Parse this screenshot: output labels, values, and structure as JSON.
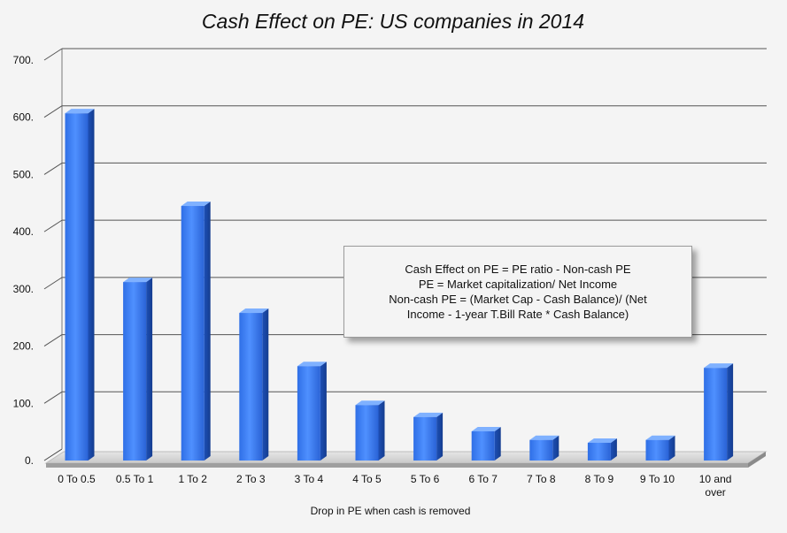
{
  "chart_data": {
    "type": "bar",
    "title": "Cash Effect on PE: US companies in 2014",
    "xlabel": "Drop in PE when cash is removed",
    "ylabel": "",
    "ylim": [
      0,
      700
    ],
    "yticks": [
      0,
      100,
      200,
      300,
      400,
      500,
      600,
      700
    ],
    "ytick_labels": [
      "0.",
      "100.",
      "200.",
      "300.",
      "400.",
      "500.",
      "600.",
      "700."
    ],
    "grid": true,
    "categories": [
      "0 To 0.5",
      "0.5 To 1",
      "1 To 2",
      "2 To 3",
      "3 To 4",
      "4 To 5",
      "5 To 6",
      "6 To 7",
      "7 To 8",
      "8 To 9",
      "9 To 10",
      "10 and over"
    ],
    "category_lines": [
      [
        "0 To 0.5"
      ],
      [
        "0.5 To 1"
      ],
      [
        "1 To 2"
      ],
      [
        "2 To 3"
      ],
      [
        "3 To 4"
      ],
      [
        "4 To 5"
      ],
      [
        "5 To 6"
      ],
      [
        "6 To 7"
      ],
      [
        "7 To 8"
      ],
      [
        "8 To 9"
      ],
      [
        "9 To 10"
      ],
      [
        "10 and",
        "over"
      ]
    ],
    "values": [
      607,
      312,
      445,
      258,
      165,
      97,
      76,
      51,
      36,
      31,
      36,
      162
    ],
    "bar_color": "#3d7ef0",
    "annotation": [
      "Cash Effect on PE = PE ratio - Non-cash PE",
      "PE = Market capitalization/ Net Income",
      "Non-cash PE = (Market Cap - Cash Balance)/ (Net",
      "Income - 1-year T.Bill Rate * Cash Balance)"
    ]
  }
}
